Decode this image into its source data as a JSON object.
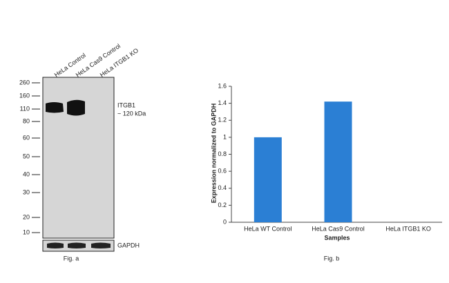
{
  "blot": {
    "lanes": [
      "HeLa Control",
      "HeLa Cas9 Control",
      "HeLa ITGB1 KO"
    ],
    "markers": [
      "260",
      "160",
      "110",
      "80",
      "60",
      "50",
      "40",
      "30",
      "20",
      "10"
    ],
    "target": "ITGB1",
    "target_size": "~ 120 kDa",
    "loading_control": "GAPDH",
    "caption": "Fig. a"
  },
  "chart_data": {
    "type": "bar",
    "caption": "Fig. b",
    "x_label": "Samples",
    "y_label": "Expression normalized to GAPDH",
    "categories": [
      "HeLa WT Control",
      "HeLa Cas9 Control",
      "HeLa ITGB1 KO"
    ],
    "values": [
      1,
      1.42,
      0
    ],
    "color": "#2b7fd4",
    "ylim": [
      0,
      1.6
    ],
    "yticks": [
      0,
      0.2,
      0.4,
      0.6,
      0.8,
      1,
      1.2,
      1.4,
      1.6
    ]
  }
}
